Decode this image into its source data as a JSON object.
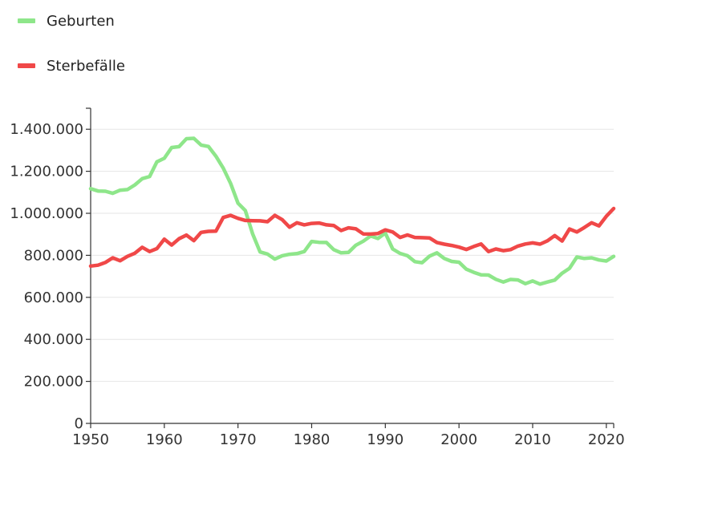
{
  "chart_data": {
    "type": "line",
    "title": "",
    "xlabel": "",
    "ylabel": "",
    "xlim": [
      1950,
      2021
    ],
    "ylim": [
      0,
      1500000
    ],
    "grid": true,
    "legend_position": "top-left",
    "x_ticks": [
      1950,
      1960,
      1970,
      1980,
      1990,
      2000,
      2010,
      2020
    ],
    "y_ticks": [
      0,
      200000,
      400000,
      600000,
      800000,
      1000000,
      1200000,
      1400000
    ],
    "y_tick_labels": [
      "0",
      "200.000",
      "400.000",
      "600.000",
      "800.000",
      "1.000.000",
      "1.200.000",
      "1.400.000"
    ],
    "x_tick_labels": [
      "1950",
      "1960",
      "1970",
      "1980",
      "1990",
      "2000",
      "2010",
      "2020"
    ],
    "x": [
      1950,
      1951,
      1952,
      1953,
      1954,
      1955,
      1956,
      1957,
      1958,
      1959,
      1960,
      1961,
      1962,
      1963,
      1964,
      1965,
      1966,
      1967,
      1968,
      1969,
      1970,
      1971,
      1972,
      1973,
      1974,
      1975,
      1976,
      1977,
      1978,
      1979,
      1980,
      1981,
      1982,
      1983,
      1984,
      1985,
      1986,
      1987,
      1988,
      1989,
      1990,
      1991,
      1992,
      1993,
      1994,
      1995,
      1996,
      1997,
      1998,
      1999,
      2000,
      2001,
      2002,
      2003,
      2004,
      2005,
      2006,
      2007,
      2008,
      2009,
      2010,
      2011,
      2012,
      2013,
      2014,
      2015,
      2016,
      2017,
      2018,
      2019,
      2020,
      2021
    ],
    "series": [
      {
        "name": "Geburten",
        "color": "#8ee68a",
        "values": [
          1117000,
          1106000,
          1105000,
          1095000,
          1110000,
          1113000,
          1135000,
          1165000,
          1175000,
          1245000,
          1262000,
          1313000,
          1317000,
          1355000,
          1357000,
          1325000,
          1318000,
          1272000,
          1215000,
          1142000,
          1048000,
          1013000,
          901000,
          816000,
          806000,
          782000,
          798000,
          805000,
          808000,
          818000,
          866000,
          862000,
          861000,
          827000,
          812000,
          814000,
          848000,
          867000,
          892000,
          880000,
          906000,
          830000,
          809000,
          798000,
          770000,
          765000,
          796000,
          812000,
          785000,
          771000,
          767000,
          734000,
          719000,
          707000,
          706000,
          686000,
          673000,
          685000,
          683000,
          665000,
          678000,
          663000,
          673000,
          682000,
          715000,
          738000,
          792000,
          785000,
          788000,
          778000,
          773000,
          795000
        ]
      },
      {
        "name": "Sterbefälle",
        "color": "#f04848",
        "values": [
          749000,
          753000,
          766000,
          788000,
          774000,
          795000,
          810000,
          838000,
          818000,
          832000,
          877000,
          849000,
          879000,
          896000,
          870000,
          909000,
          914000,
          915000,
          980000,
          990000,
          976000,
          966000,
          965000,
          964000,
          960000,
          990000,
          970000,
          934000,
          955000,
          945000,
          952000,
          954000,
          945000,
          942000,
          918000,
          931000,
          926000,
          902000,
          901000,
          904000,
          921000,
          911000,
          885000,
          897000,
          885000,
          884000,
          883000,
          861000,
          853000,
          847000,
          839000,
          828000,
          842000,
          854000,
          818000,
          830000,
          822000,
          827000,
          844000,
          854000,
          859000,
          853000,
          869000,
          894000,
          868000,
          925000,
          911000,
          932000,
          955000,
          940000,
          986000,
          1023000
        ]
      }
    ]
  }
}
